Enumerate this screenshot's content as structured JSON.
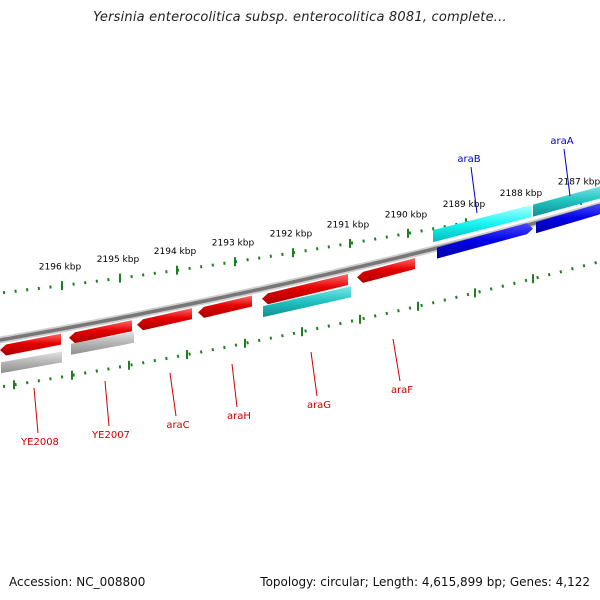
{
  "title": "Yersinia enterocolitica subsp. enterocolitica 8081, complete...",
  "footer": {
    "accession_label": "Accession:",
    "accession": "NC_008800",
    "topology_label": "Topology:",
    "topology": "circular",
    "length_label": "Length:",
    "length": "4,615,899 bp",
    "genes_label": "Genes:",
    "genes": "4,122"
  },
  "colors": {
    "forward_gene": "#0000e0",
    "forward_cds": "#20c8c8",
    "reverse_gene": "#e00000",
    "reverse_cds": "#aaaaaa",
    "tick": "#1f7f1f",
    "backbone": "#777777",
    "forward_label": "#0000cc",
    "reverse_label": "#cc0000",
    "tick_label": "#000000"
  },
  "ticks": [
    {
      "label": "2196 kbp"
    },
    {
      "label": "2195 kbp"
    },
    {
      "label": "2194 kbp"
    },
    {
      "label": "2193 kbp"
    },
    {
      "label": "2192 kbp"
    },
    {
      "label": "2191 kbp"
    },
    {
      "label": "2190 kbp"
    },
    {
      "label": "2189 kbp"
    },
    {
      "label": "2188 kbp"
    },
    {
      "label": "2187 kbp"
    }
  ],
  "forward_features": [
    {
      "label": "araB"
    },
    {
      "label": "araA"
    }
  ],
  "reverse_features": [
    {
      "label": "YE2008"
    },
    {
      "label": "YE2007"
    },
    {
      "label": "araC"
    },
    {
      "label": "araH"
    },
    {
      "label": "araG"
    },
    {
      "label": "araF"
    }
  ]
}
